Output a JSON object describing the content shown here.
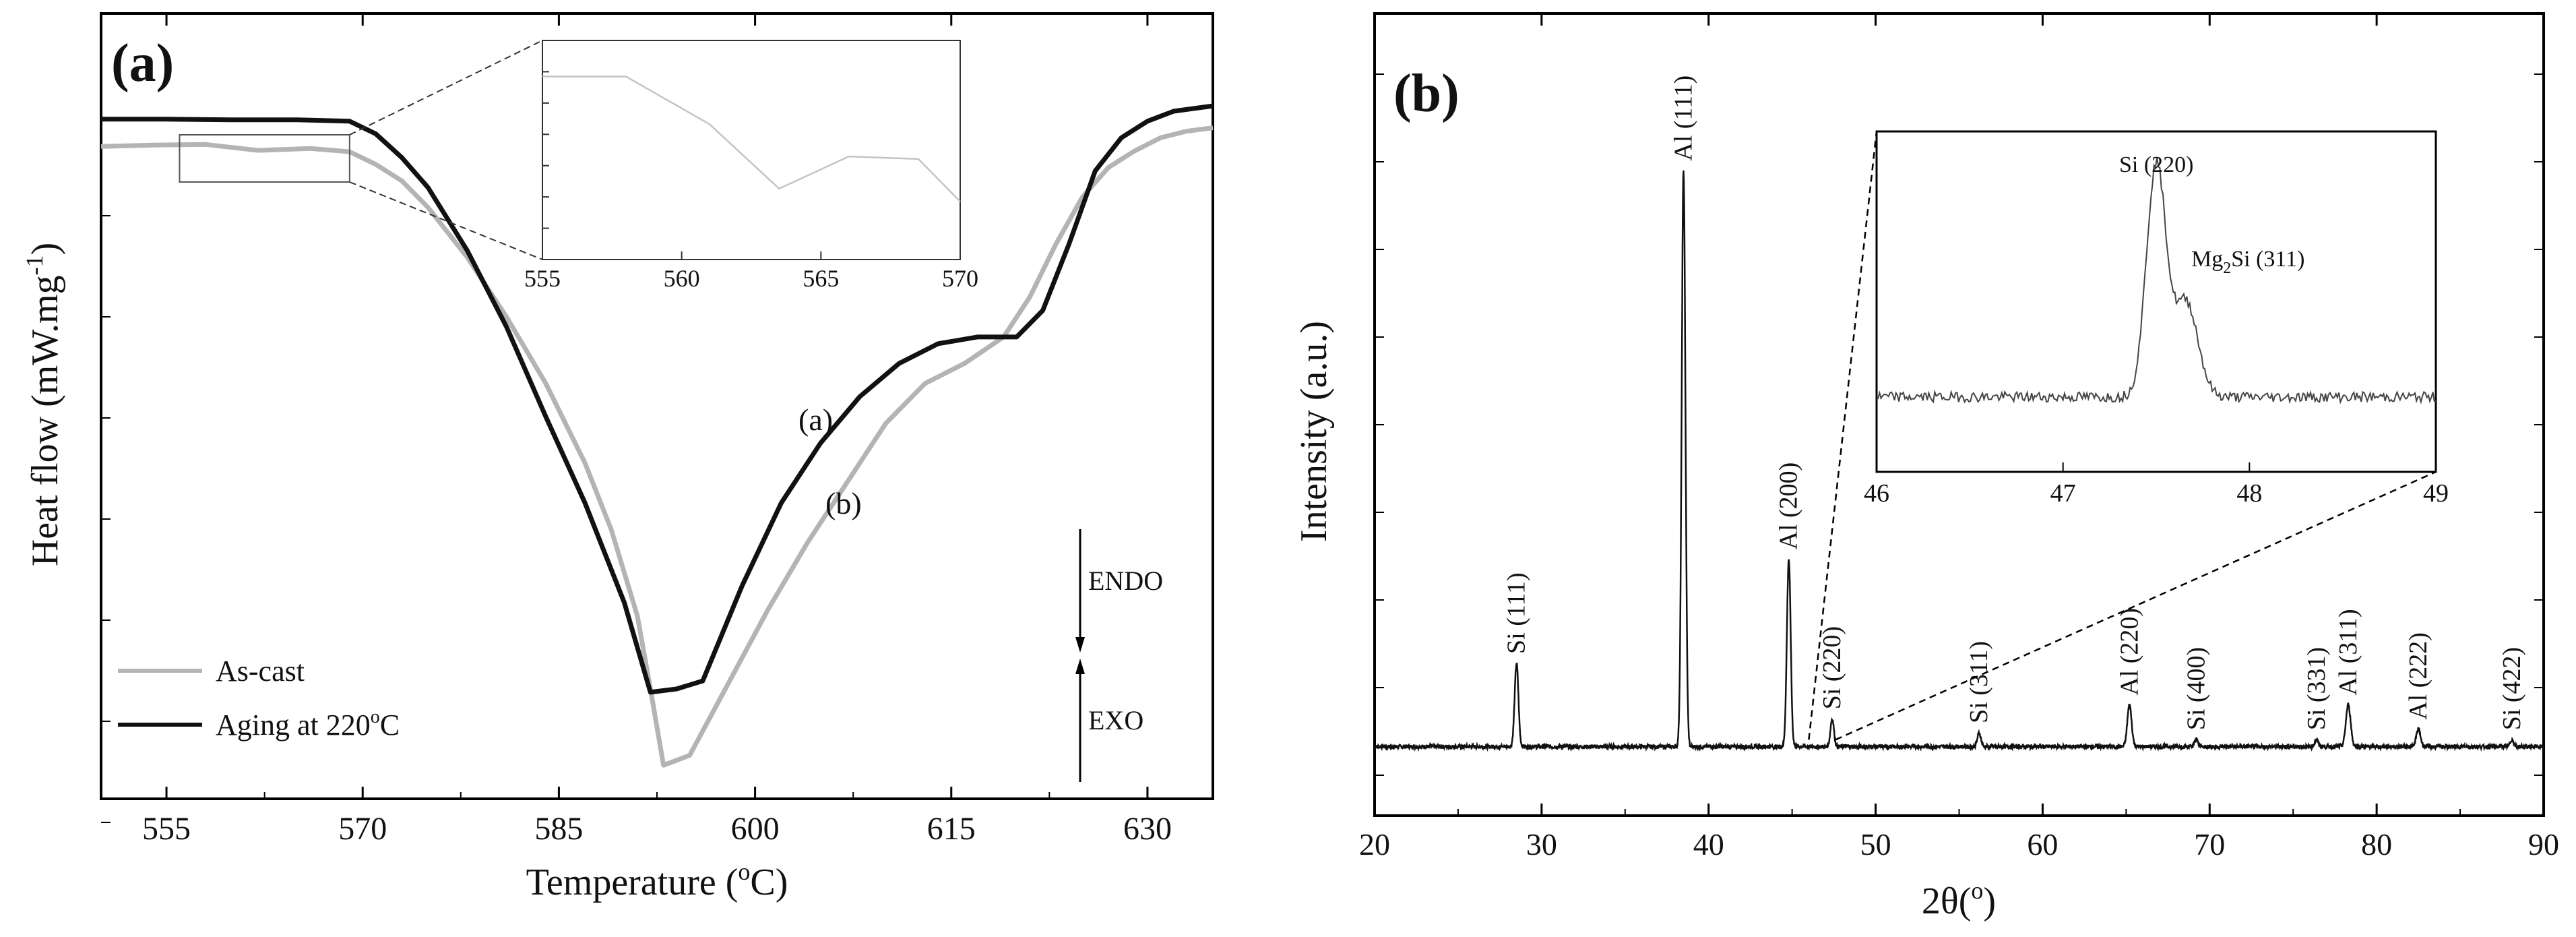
{
  "chart_data": [
    {
      "panel": "a",
      "type": "line",
      "panel_label": "(a)",
      "xlabel": "Temperature (°C)",
      "xlabel_parts": {
        "pre": "Temperature (",
        "sup": "o",
        "post": "C)"
      },
      "ylabel": "Heat flow (mW.mg-1)",
      "ylabel_parts": {
        "pre": "Heat flow (mW.mg",
        "sup": "-1",
        "post": ")"
      },
      "xlim": [
        550,
        635
      ],
      "ylim": [
        0,
        10
      ],
      "x_ticks": [
        555,
        570,
        585,
        600,
        615,
        630
      ],
      "x_tick_labels": [
        "555",
        "570",
        "585",
        "600",
        "615",
        "630"
      ],
      "series": [
        {
          "name": "As-cast",
          "color": "#b4b4b4",
          "x": [
            550,
            554,
            558,
            562,
            566,
            569,
            571,
            573,
            575,
            578,
            581,
            584,
            587,
            589,
            591,
            592,
            593,
            595,
            598,
            601,
            604,
            607,
            610,
            613,
            616,
            619,
            621,
            623,
            625,
            627,
            629,
            631,
            633,
            635
          ],
          "y": [
            9.47,
            9.49,
            9.5,
            9.41,
            9.44,
            9.39,
            9.2,
            8.95,
            8.55,
            7.8,
            6.9,
            5.9,
            4.7,
            3.7,
            2.4,
            1.3,
            0.15,
            0.3,
            1.4,
            2.5,
            3.5,
            4.4,
            5.3,
            5.9,
            6.2,
            6.6,
            7.2,
            8.0,
            8.7,
            9.15,
            9.4,
            9.6,
            9.7,
            9.75
          ]
        },
        {
          "name": "Aging at 220°C",
          "color": "#111111",
          "x": [
            550,
            555,
            560,
            565,
            569,
            571,
            573,
            575,
            578,
            581,
            584,
            587,
            590,
            592,
            594,
            596,
            599,
            602,
            605,
            608,
            611,
            614,
            617,
            620,
            622,
            624,
            626,
            628,
            630,
            632,
            635
          ],
          "y": [
            9.88,
            9.88,
            9.87,
            9.87,
            9.85,
            9.66,
            9.3,
            8.85,
            7.9,
            6.75,
            5.4,
            4.1,
            2.6,
            1.25,
            1.3,
            1.42,
            2.85,
            4.1,
            5.0,
            5.7,
            6.2,
            6.5,
            6.6,
            6.6,
            7.0,
            8.0,
            9.1,
            9.6,
            9.85,
            10.0,
            10.08
          ]
        }
      ],
      "legend": [
        {
          "label": "As-cast",
          "color": "#b4b4b4"
        },
        {
          "label": "Aging at 220°C",
          "label_parts": {
            "pre": "Aging at 220",
            "sup": "o",
            "post": "C"
          },
          "color": "#111111"
        }
      ],
      "annotations": [
        "(a)",
        "(b)",
        "ENDO",
        "EXO"
      ],
      "inset": {
        "xlim": [
          555,
          570
        ],
        "x_ticks": [
          555,
          560,
          565,
          570
        ],
        "x_tick_labels": [
          "555",
          "560",
          "565",
          "570"
        ],
        "zoom_box_x": [
          556,
          569
        ],
        "series": {
          "name": "As-cast",
          "color": "#c4c4c4",
          "x": [
            555,
            558,
            561,
            563.5,
            566,
            568.5,
            570
          ],
          "y": [
            9.82,
            9.82,
            9.45,
            8.95,
            9.2,
            9.18,
            8.85
          ]
        },
        "ylim": [
          8.4,
          10.1
        ]
      }
    },
    {
      "panel": "b",
      "type": "line",
      "panel_label": "(b)",
      "xlabel": "2θ(°)",
      "xlabel_parts": {
        "pre": "2θ(",
        "sup": "o",
        "post": ")"
      },
      "ylabel": "Intensity (a.u.)",
      "xlim": [
        20,
        90
      ],
      "ylim": [
        0,
        100
      ],
      "x_ticks": [
        20,
        30,
        40,
        50,
        60,
        70,
        80,
        90
      ],
      "x_tick_labels": [
        "20",
        "30",
        "40",
        "50",
        "60",
        "70",
        "80",
        "90"
      ],
      "baseline": 8,
      "peaks": [
        {
          "label": "Si (111)",
          "x": 28.5,
          "height": 20,
          "width": 0.16
        },
        {
          "label": "Al (111)",
          "x": 38.5,
          "height": 91,
          "width": 0.16
        },
        {
          "label": "Al (200)",
          "x": 44.8,
          "height": 35,
          "width": 0.16
        },
        {
          "label": "Si (220)",
          "x": 47.4,
          "height": 12,
          "width": 0.15
        },
        {
          "label": "Si (311)",
          "x": 56.2,
          "height": 10,
          "width": 0.15
        },
        {
          "label": "Al (220)",
          "x": 65.2,
          "height": 14,
          "width": 0.18
        },
        {
          "label": "Si (400)",
          "x": 69.2,
          "height": 9,
          "width": 0.15
        },
        {
          "label": "Si (331)",
          "x": 76.4,
          "height": 9,
          "width": 0.15
        },
        {
          "label": "Al (311)",
          "x": 78.3,
          "height": 14,
          "width": 0.2
        },
        {
          "label": "Al (222)",
          "x": 82.5,
          "height": 10.5,
          "width": 0.18
        },
        {
          "label": "Si (422)",
          "x": 88.1,
          "height": 9,
          "width": 0.15
        }
      ],
      "inset": {
        "xlim": [
          46,
          49
        ],
        "x_ticks": [
          46,
          47,
          48,
          49
        ],
        "x_tick_labels": [
          "46",
          "47",
          "48",
          "49"
        ],
        "ylim": [
          0,
          100
        ],
        "baseline": 22,
        "zoom_x": [
          46,
          49
        ],
        "peak": {
          "x": 47.5,
          "height": 90
        },
        "labels": [
          {
            "text": "Si (220)"
          },
          {
            "text": "Mg2Si (311)",
            "parts": {
              "pre": "Mg",
              "sub": "2",
              "post": "Si (311)"
            }
          }
        ]
      }
    }
  ]
}
